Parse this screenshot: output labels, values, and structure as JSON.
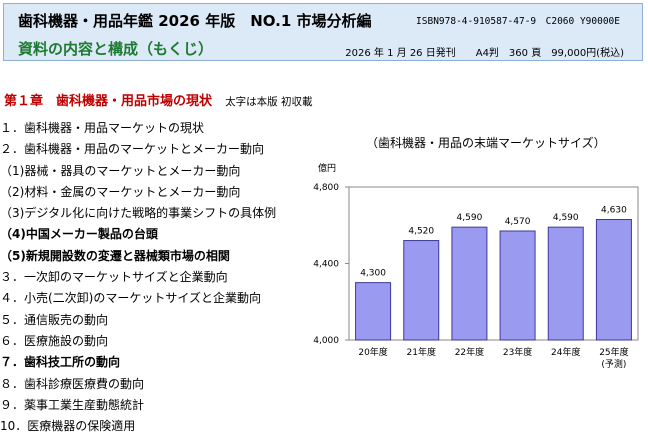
{
  "header": {
    "title": "歯科機器・用品年鑑 2026 年版　NO.1 市場分析編",
    "isbn": "ISBN978-4-910587-47-9　C2060 Y90000E",
    "subtitle": "資料の内容と構成（もくじ）",
    "pubinfo": "2026 年 1 月 26 日発刊　　A4判　360 頁　99,000円(税込)"
  },
  "chapter": {
    "title": "第１章　歯科機器・用品市場の現状",
    "note": "太字は本版 初収載"
  },
  "toc": [
    {
      "text": "１．歯科機器・用品マーケットの現状",
      "bold": false
    },
    {
      "text": "２．歯科機器・用品のマーケットとメーカー動向",
      "bold": false
    },
    {
      "text": "（1)器械・器具のマーケットとメーカー動向",
      "bold": false
    },
    {
      "text": "（2)材料・金属のマーケットとメーカー動向",
      "bold": false
    },
    {
      "text": "（3)デジタル化に向けた戦略的事業シフトの具体例",
      "bold": false
    },
    {
      "text": "（4)中国メーカー製品の台頭",
      "bold": true
    },
    {
      "text": "（5)新規開設数の変遷と器械類市場の相関",
      "bold": true
    },
    {
      "text": "３．一次卸のマーケットサイズと企業動向",
      "bold": false
    },
    {
      "text": "４．小売(二次卸)のマーケットサイズと企業動向",
      "bold": false
    },
    {
      "text": "５．通信販売の動向",
      "bold": false
    },
    {
      "text": "６．医療施設の動向",
      "bold": false
    },
    {
      "text": "７．歯科技工所の動向",
      "bold": true
    },
    {
      "text": "８．歯科診療医療費の動向",
      "bold": false
    },
    {
      "text": "９．薬事工業生産動態統計",
      "bold": false
    },
    {
      "text": "10．医療機器の保険適用",
      "bold": false
    }
  ],
  "colors": {
    "bar_fill": "#9a9af0",
    "bar_stroke": "#3a3a9a",
    "header_bg": "#dce9f7",
    "subtitle": "#1e7a32",
    "chapter": "#c00000"
  },
  "chart_data": {
    "type": "bar",
    "title": "（歯科機器・用品の末端マーケットサイズ）",
    "ylabel": "億円",
    "ylim": [
      4000,
      4800
    ],
    "yticks": [
      "4,000",
      "4,400",
      "4,800"
    ],
    "ytick_values": [
      4000,
      4400,
      4800
    ],
    "grid": false,
    "categories": [
      "20年度",
      "21年度",
      "22年度",
      "23年度",
      "24年度",
      "25年度"
    ],
    "category_notes": [
      "",
      "",
      "",
      "",
      "",
      "(予測)"
    ],
    "values": [
      4300,
      4520,
      4590,
      4570,
      4590,
      4630
    ],
    "value_labels": [
      "4,300",
      "4,520",
      "4,590",
      "4,570",
      "4,590",
      "4,630"
    ]
  }
}
